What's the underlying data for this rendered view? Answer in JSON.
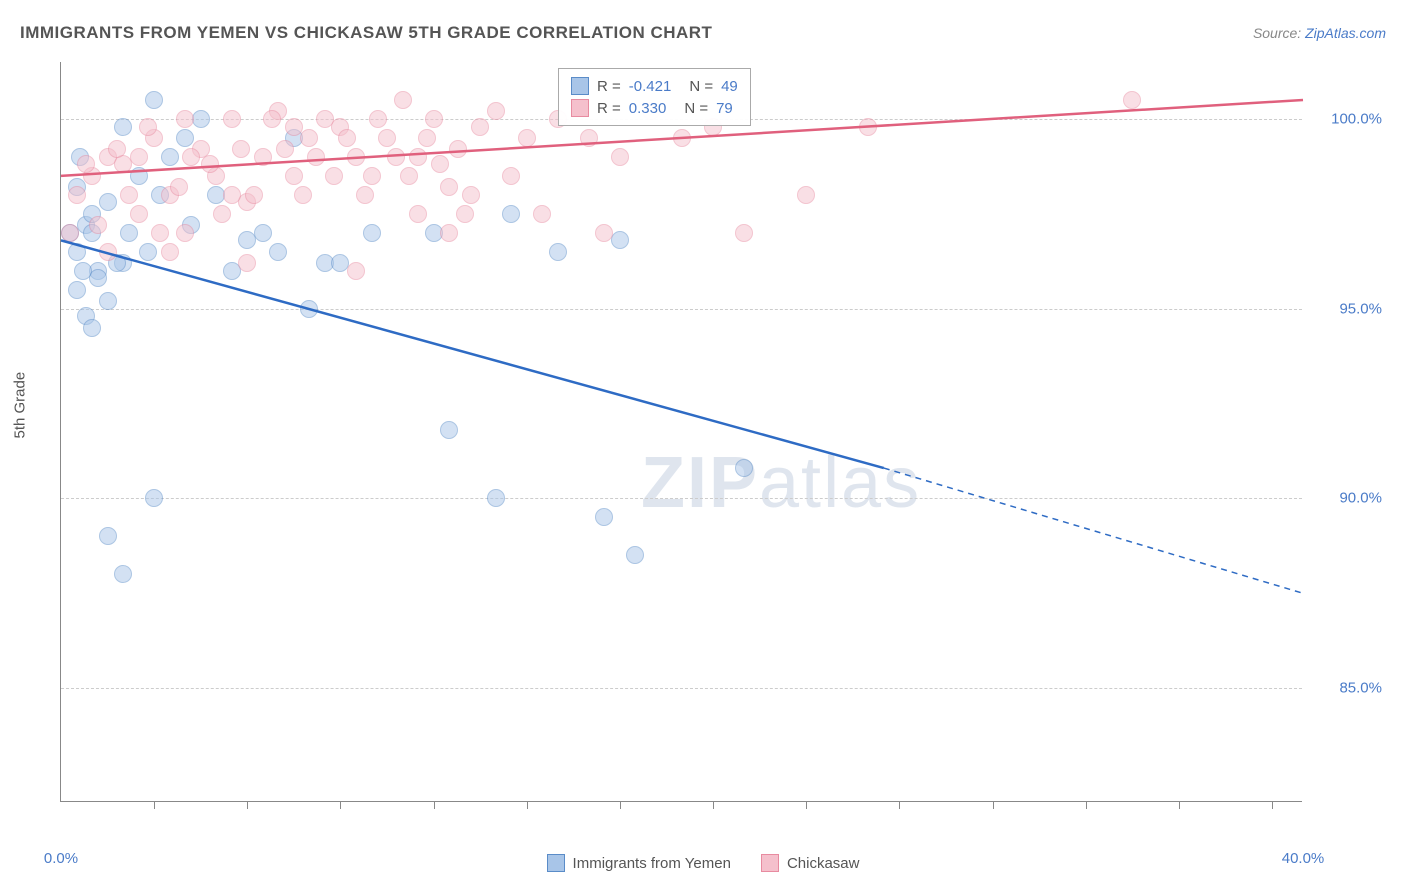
{
  "title": "IMMIGRANTS FROM YEMEN VS CHICKASAW 5TH GRADE CORRELATION CHART",
  "source_label": "Source:",
  "source_name": "ZipAtlas.com",
  "y_axis_label": "5th Grade",
  "watermark_a": "ZIP",
  "watermark_b": "atlas",
  "chart": {
    "type": "scatter",
    "xlim": [
      0,
      40
    ],
    "ylim": [
      82,
      101.5
    ],
    "x_ticks_minor": [
      3,
      6,
      9,
      12,
      15,
      18,
      21,
      24,
      27,
      30,
      33,
      36,
      39
    ],
    "x_ticks_labeled": [
      0,
      40
    ],
    "x_tick_labels": [
      "0.0%",
      "40.0%"
    ],
    "y_gridlines": [
      85,
      90,
      95,
      100
    ],
    "y_tick_labels": [
      "85.0%",
      "90.0%",
      "95.0%",
      "100.0%"
    ],
    "background_color": "#ffffff",
    "grid_color": "#cccccc",
    "axis_color": "#888888",
    "label_color": "#4a7bc8",
    "point_radius": 9,
    "point_opacity": 0.5,
    "series": [
      {
        "name": "Immigrants from Yemen",
        "color_fill": "#a8c5e8",
        "color_stroke": "#5a8cc8",
        "line_color": "#2e6bc4",
        "R": "-0.421",
        "N": "49",
        "trend": {
          "x1": 0,
          "y1": 96.8,
          "x2": 26.5,
          "y2": 90.8,
          "x2_dash": 40,
          "y2_dash": 87.5
        },
        "points": [
          [
            0.5,
            96.5
          ],
          [
            0.8,
            97.2
          ],
          [
            0.5,
            98.2
          ],
          [
            1.0,
            97.0
          ],
          [
            0.6,
            99.0
          ],
          [
            1.2,
            96.0
          ],
          [
            1.5,
            97.8
          ],
          [
            0.5,
            95.5
          ],
          [
            0.8,
            94.8
          ],
          [
            1.5,
            95.2
          ],
          [
            1.0,
            94.5
          ],
          [
            1.2,
            95.8
          ],
          [
            2.0,
            96.2
          ],
          [
            2.5,
            98.5
          ],
          [
            2.0,
            99.8
          ],
          [
            3.0,
            100.5
          ],
          [
            3.5,
            99.0
          ],
          [
            1.5,
            89.0
          ],
          [
            3.0,
            90.0
          ],
          [
            2.0,
            88.0
          ],
          [
            4.0,
            99.5
          ],
          [
            4.5,
            100.0
          ],
          [
            5.0,
            98.0
          ],
          [
            5.5,
            96.0
          ],
          [
            6.0,
            96.8
          ],
          [
            6.5,
            97.0
          ],
          [
            7.0,
            96.5
          ],
          [
            7.5,
            99.5
          ],
          [
            8.0,
            95.0
          ],
          [
            8.5,
            96.2
          ],
          [
            9.0,
            96.2
          ],
          [
            10.0,
            97.0
          ],
          [
            12.0,
            97.0
          ],
          [
            12.5,
            91.8
          ],
          [
            14.0,
            90.0
          ],
          [
            14.5,
            97.5
          ],
          [
            16.0,
            96.5
          ],
          [
            17.5,
            89.5
          ],
          [
            18.0,
            96.8
          ],
          [
            18.5,
            88.5
          ],
          [
            1.0,
            97.5
          ],
          [
            1.8,
            96.2
          ],
          [
            2.2,
            97.0
          ],
          [
            3.2,
            98.0
          ],
          [
            0.3,
            97.0
          ],
          [
            0.7,
            96.0
          ],
          [
            4.2,
            97.2
          ],
          [
            22.0,
            90.8
          ],
          [
            2.8,
            96.5
          ]
        ]
      },
      {
        "name": "Chickasaw",
        "color_fill": "#f5c0cc",
        "color_stroke": "#e88ba0",
        "line_color": "#e0607d",
        "R": "0.330",
        "N": "79",
        "trend": {
          "x1": 0,
          "y1": 98.5,
          "x2": 40,
          "y2": 100.5
        },
        "points": [
          [
            0.5,
            98.0
          ],
          [
            1.0,
            98.5
          ],
          [
            1.5,
            99.0
          ],
          [
            2.0,
            98.8
          ],
          [
            2.5,
            97.5
          ],
          [
            3.0,
            99.5
          ],
          [
            3.5,
            98.0
          ],
          [
            4.0,
            100.0
          ],
          [
            4.5,
            99.2
          ],
          [
            5.0,
            98.5
          ],
          [
            5.5,
            100.0
          ],
          [
            6.0,
            97.8
          ],
          [
            6.5,
            99.0
          ],
          [
            7.0,
            100.2
          ],
          [
            7.5,
            98.5
          ],
          [
            8.0,
            99.5
          ],
          [
            8.5,
            100.0
          ],
          [
            9.0,
            99.8
          ],
          [
            9.5,
            96.0
          ],
          [
            10.0,
            98.5
          ],
          [
            10.5,
            99.5
          ],
          [
            11.0,
            100.5
          ],
          [
            11.5,
            99.0
          ],
          [
            12.0,
            100.0
          ],
          [
            12.5,
            98.2
          ],
          [
            13.0,
            97.5
          ],
          [
            13.5,
            99.8
          ],
          [
            14.0,
            100.2
          ],
          [
            14.5,
            98.5
          ],
          [
            15.0,
            99.5
          ],
          [
            15.5,
            97.5
          ],
          [
            16.0,
            100.0
          ],
          [
            17.0,
            99.5
          ],
          [
            17.5,
            97.0
          ],
          [
            18.0,
            99.0
          ],
          [
            19.0,
            100.2
          ],
          [
            20.0,
            99.5
          ],
          [
            21.0,
            99.8
          ],
          [
            22.0,
            97.0
          ],
          [
            24.0,
            98.0
          ],
          [
            26.0,
            99.8
          ],
          [
            34.5,
            100.5
          ],
          [
            0.3,
            97.0
          ],
          [
            0.8,
            98.8
          ],
          [
            1.2,
            97.2
          ],
          [
            1.8,
            99.2
          ],
          [
            2.2,
            98.0
          ],
          [
            2.8,
            99.8
          ],
          [
            3.2,
            97.0
          ],
          [
            3.8,
            98.2
          ],
          [
            4.2,
            99.0
          ],
          [
            4.8,
            98.8
          ],
          [
            5.2,
            97.5
          ],
          [
            5.8,
            99.2
          ],
          [
            6.2,
            98.0
          ],
          [
            6.8,
            100.0
          ],
          [
            7.2,
            99.2
          ],
          [
            7.8,
            98.0
          ],
          [
            8.2,
            99.0
          ],
          [
            8.8,
            98.5
          ],
          [
            9.2,
            99.5
          ],
          [
            9.8,
            98.0
          ],
          [
            10.2,
            100.0
          ],
          [
            10.8,
            99.0
          ],
          [
            11.2,
            98.5
          ],
          [
            11.8,
            99.5
          ],
          [
            12.2,
            98.8
          ],
          [
            12.8,
            99.2
          ],
          [
            13.2,
            98.0
          ],
          [
            3.5,
            96.5
          ],
          [
            4.0,
            97.0
          ],
          [
            6.0,
            96.2
          ],
          [
            11.5,
            97.5
          ],
          [
            1.5,
            96.5
          ],
          [
            2.5,
            99.0
          ],
          [
            5.5,
            98.0
          ],
          [
            7.5,
            99.8
          ],
          [
            9.5,
            99.0
          ],
          [
            12.5,
            97.0
          ]
        ]
      }
    ]
  },
  "legend_stats": {
    "r_label": "R =",
    "n_label": "N ="
  },
  "bottom_legend": {
    "series1": "Immigrants from Yemen",
    "series2": "Chickasaw"
  }
}
